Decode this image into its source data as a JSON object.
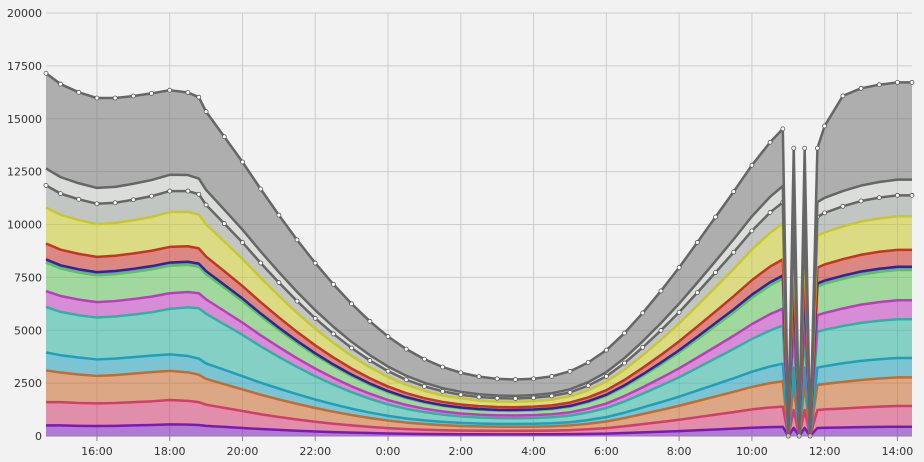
{
  "chart_data": {
    "type": "area",
    "stacked": true,
    "title": "",
    "xlabel": "",
    "ylabel": "",
    "ylim": [
      0,
      20000
    ],
    "yticks": [
      0,
      2500,
      5000,
      7500,
      10000,
      12500,
      15000,
      17500,
      20000
    ],
    "xlim": [
      14.6,
      38.4
    ],
    "xticks": [
      {
        "x": 16,
        "label": "16:00"
      },
      {
        "x": 18,
        "label": "18:00"
      },
      {
        "x": 20,
        "label": "20:00"
      },
      {
        "x": 22,
        "label": "22:00"
      },
      {
        "x": 24,
        "label": "0:00"
      },
      {
        "x": 26,
        "label": "2:00"
      },
      {
        "x": 28,
        "label": "4:00"
      },
      {
        "x": 30,
        "label": "6:00"
      },
      {
        "x": 32,
        "label": "8:00"
      },
      {
        "x": 34,
        "label": "10:00"
      },
      {
        "x": 36,
        "label": "12:00"
      },
      {
        "x": 38,
        "label": "14:00"
      }
    ],
    "grid": true,
    "legend": "none",
    "x": [
      14.6,
      15.0,
      15.5,
      16.0,
      16.5,
      17.0,
      17.5,
      18.0,
      18.5,
      18.8,
      19.0,
      19.5,
      20.0,
      20.5,
      21.0,
      21.5,
      22.0,
      22.5,
      23.0,
      23.5,
      24.0,
      24.5,
      25.0,
      25.5,
      26.0,
      26.5,
      27.0,
      27.5,
      28.0,
      28.5,
      29.0,
      29.5,
      30.0,
      30.5,
      31.0,
      31.5,
      32.0,
      32.5,
      33.0,
      33.5,
      34.0,
      34.5,
      34.85,
      35.0,
      35.15,
      35.3,
      35.45,
      35.6,
      35.8,
      36.0,
      36.5,
      37.0,
      37.5,
      38.0,
      38.4
    ],
    "series": [
      {
        "color": "#7a19b8",
        "values": [
          500,
          500,
          480,
          470,
          480,
          500,
          520,
          550,
          540,
          520,
          480,
          430,
          380,
          330,
          290,
          250,
          215,
          185,
          160,
          140,
          120,
          105,
          95,
          88,
          82,
          80,
          78,
          78,
          80,
          82,
          88,
          100,
          115,
          140,
          170,
          200,
          230,
          270,
          310,
          350,
          390,
          420,
          430,
          0,
          380,
          0,
          380,
          0,
          380,
          390,
          400,
          420,
          430,
          440,
          440
        ]
      },
      {
        "color": "#d23c6e",
        "values": [
          1100,
          1100,
          1080,
          1070,
          1080,
          1100,
          1120,
          1150,
          1120,
          1080,
          1000,
          900,
          800,
          700,
          610,
          530,
          460,
          395,
          340,
          290,
          250,
          220,
          200,
          185,
          175,
          168,
          165,
          165,
          168,
          175,
          190,
          220,
          260,
          320,
          390,
          460,
          540,
          620,
          700,
          780,
          870,
          930,
          960,
          0,
          850,
          0,
          850,
          0,
          850,
          870,
          900,
          930,
          960,
          980,
          980
        ]
      },
      {
        "color": "#c96a2b",
        "values": [
          1500,
          1400,
          1350,
          1300,
          1320,
          1350,
          1380,
          1380,
          1350,
          1300,
          1220,
          1120,
          1020,
          920,
          830,
          740,
          650,
          570,
          490,
          420,
          360,
          310,
          270,
          240,
          218,
          205,
          198,
          196,
          198,
          205,
          222,
          260,
          310,
          390,
          480,
          570,
          660,
          760,
          860,
          960,
          1060,
          1150,
          1200,
          0,
          1180,
          0,
          1180,
          0,
          1180,
          1200,
          1260,
          1300,
          1330,
          1350,
          1350
        ]
      },
      {
        "color": "#1e9fba",
        "values": [
          850,
          820,
          800,
          780,
          780,
          780,
          780,
          780,
          770,
          760,
          730,
          680,
          630,
          570,
          510,
          455,
          400,
          350,
          300,
          258,
          222,
          194,
          172,
          156,
          145,
          138,
          134,
          133,
          135,
          140,
          152,
          175,
          208,
          255,
          310,
          370,
          430,
          500,
          570,
          640,
          720,
          790,
          830,
          0,
          820,
          0,
          820,
          0,
          820,
          840,
          880,
          900,
          910,
          920,
          920
        ]
      },
      {
        "color": "#2ab5a0",
        "values": [
          2150,
          2050,
          2000,
          1980,
          1990,
          2010,
          2050,
          2150,
          2300,
          2380,
          2350,
          2150,
          1950,
          1720,
          1500,
          1290,
          1100,
          930,
          780,
          650,
          540,
          455,
          390,
          340,
          305,
          282,
          270,
          267,
          272,
          285,
          310,
          360,
          430,
          530,
          650,
          780,
          920,
          1070,
          1230,
          1390,
          1550,
          1700,
          1800,
          0,
          1700,
          0,
          1700,
          0,
          1700,
          1720,
          1760,
          1800,
          1820,
          1830,
          1830
        ]
      },
      {
        "color": "#c03ac0",
        "values": [
          750,
          750,
          740,
          730,
          730,
          735,
          740,
          740,
          730,
          710,
          680,
          630,
          580,
          520,
          465,
          410,
          360,
          315,
          275,
          240,
          208,
          183,
          164,
          150,
          141,
          136,
          133,
          133,
          136,
          143,
          157,
          180,
          212,
          255,
          305,
          360,
          420,
          485,
          550,
          620,
          700,
          770,
          800,
          0,
          780,
          0,
          780,
          0,
          780,
          800,
          830,
          860,
          880,
          900,
          900
        ]
      },
      {
        "color": "#5cc25a",
        "values": [
          1350,
          1300,
          1280,
          1270,
          1270,
          1280,
          1290,
          1300,
          1280,
          1250,
          1190,
          1100,
          1010,
          910,
          810,
          720,
          635,
          555,
          485,
          420,
          365,
          320,
          285,
          258,
          240,
          228,
          222,
          220,
          224,
          236,
          260,
          300,
          360,
          440,
          535,
          640,
          750,
          870,
          990,
          1110,
          1240,
          1360,
          1420,
          0,
          1350,
          0,
          1350,
          0,
          1350,
          1380,
          1400,
          1420,
          1430,
          1430,
          1430
        ]
      },
      {
        "color": "#28289e",
        "values": [
          150,
          150,
          150,
          150,
          150,
          150,
          150,
          150,
          150,
          150,
          145,
          140,
          130,
          120,
          110,
          100,
          90,
          80,
          72,
          64,
          57,
          51,
          46,
          42,
          40,
          38,
          37,
          37,
          38,
          40,
          44,
          50,
          58,
          68,
          80,
          92,
          105,
          118,
          130,
          140,
          150,
          150,
          150,
          0,
          150,
          0,
          150,
          0,
          150,
          150,
          150,
          150,
          150,
          150,
          150
        ]
      },
      {
        "color": "#c83228",
        "values": [
          750,
          740,
          730,
          720,
          720,
          725,
          730,
          740,
          730,
          720,
          690,
          640,
          590,
          535,
          480,
          425,
          375,
          328,
          285,
          248,
          215,
          188,
          167,
          152,
          142,
          136,
          133,
          133,
          136,
          143,
          157,
          180,
          212,
          255,
          305,
          360,
          420,
          485,
          550,
          620,
          690,
          740,
          760,
          0,
          750,
          0,
          750,
          0,
          750,
          760,
          780,
          790,
          800,
          800,
          800
        ]
      },
      {
        "color": "#c8c828",
        "values": [
          1700,
          1650,
          1600,
          1550,
          1550,
          1570,
          1600,
          1650,
          1630,
          1600,
          1520,
          1400,
          1280,
          1150,
          1020,
          900,
          790,
          690,
          600,
          520,
          450,
          392,
          345,
          310,
          285,
          268,
          258,
          255,
          259,
          272,
          298,
          342,
          405,
          490,
          595,
          715,
          850,
          990,
          1140,
          1290,
          1450,
          1600,
          1700,
          0,
          1500,
          0,
          1500,
          0,
          1500,
          1520,
          1550,
          1570,
          1580,
          1590,
          1590
        ]
      },
      {
        "color": "#9aa29a",
        "values": [
          1050,
          1000,
          980,
          960,
          960,
          970,
          980,
          990,
          980,
          960,
          920,
          850,
          780,
          705,
          630,
          558,
          490,
          428,
          372,
          322,
          278,
          242,
          213,
          191,
          176,
          166,
          160,
          158,
          161,
          169,
          185,
          212,
          252,
          305,
          370,
          445,
          525,
          610,
          700,
          790,
          880,
          960,
          1000,
          0,
          900,
          0,
          900,
          0,
          900,
          920,
          950,
          970,
          980,
          990,
          990
        ]
      },
      {
        "color": "#c8ccc8",
        "values": [
          800,
          780,
          760,
          750,
          750,
          755,
          760,
          770,
          760,
          740,
          710,
          660,
          605,
          548,
          490,
          435,
          382,
          333,
          290,
          251,
          217,
          189,
          166,
          149,
          137,
          129,
          125,
          124,
          126,
          132,
          145,
          166,
          197,
          238,
          288,
          346,
          408,
          474,
          543,
          613,
          683,
          740,
          770,
          0,
          700,
          0,
          700,
          0,
          700,
          710,
          720,
          730,
          740,
          740,
          740
        ]
      },
      {
        "color": "#777777",
        "values": [
          4500,
          4400,
          4300,
          4250,
          4200,
          4150,
          4100,
          4000,
          3900,
          3850,
          3700,
          3450,
          3200,
          2950,
          2700,
          2460,
          2230,
          2010,
          1800,
          1600,
          1420,
          1260,
          1120,
          1000,
          905,
          835,
          790,
          770,
          775,
          800,
          850,
          930,
          1040,
          1180,
          1340,
          1520,
          1710,
          1900,
          2080,
          2250,
          2420,
          2580,
          2700,
          0,
          2550,
          0,
          2550,
          0,
          2550,
          3400,
          4500,
          4600,
          4600,
          4600,
          4600
        ]
      }
    ]
  }
}
